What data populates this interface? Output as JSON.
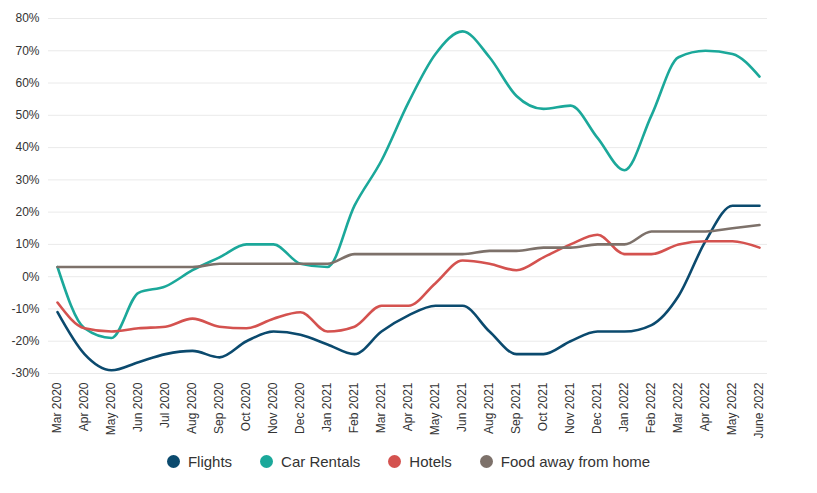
{
  "chart_data": {
    "type": "line",
    "categories": [
      "Mar 2020",
      "Apr 2020",
      "May 2020",
      "Jun 2020",
      "Jul 2020",
      "Aug 2020",
      "Sep 2020",
      "Oct 2020",
      "Nov 2020",
      "Dec 2020",
      "Jan 2021",
      "Feb 2021",
      "Mar 2021",
      "Apr 2021",
      "May 2021",
      "Jun 2021",
      "Aug 2021",
      "Sep 2021",
      "Oct 2021",
      "Nov 2021",
      "Dec 2021",
      "Jan 2022",
      "Feb 2022",
      "Mar 2022",
      "Apr 2022",
      "May 2022",
      "June 2022"
    ],
    "series": [
      {
        "name": "Flights",
        "color": "#0b4a6e",
        "values": [
          -11,
          -24,
          -29,
          -26.5,
          -24,
          -23,
          -25,
          -20,
          -17,
          -18,
          -21,
          -24,
          -17,
          -12,
          -9,
          -9,
          -17,
          -24,
          -24,
          -20,
          -17,
          -17,
          -15,
          -6,
          11,
          22,
          22
        ]
      },
      {
        "name": "Car Rentals",
        "color": "#1ba89a",
        "values": [
          3,
          -16,
          -19,
          -5,
          -3,
          2,
          6,
          10,
          10,
          4,
          3,
          22,
          36,
          54,
          69,
          76,
          68,
          56,
          52,
          53,
          43,
          33,
          50,
          68,
          70,
          69,
          62
        ]
      },
      {
        "name": "Hotels",
        "color": "#d4524f",
        "values": [
          -8,
          -16,
          -17,
          -16,
          -15.5,
          -13,
          -15.5,
          -16,
          -13,
          -11,
          -17,
          -15.5,
          -9,
          -9,
          -2,
          5,
          4,
          2,
          6,
          10,
          13,
          7,
          7,
          10,
          11,
          11,
          9
        ]
      },
      {
        "name": "Food away from home",
        "color": "#7d716a",
        "values": [
          3,
          3,
          3,
          3,
          3,
          3,
          4,
          4,
          4,
          4,
          4,
          7,
          7,
          7,
          7,
          7,
          8,
          8,
          9,
          9,
          10,
          10,
          14,
          14,
          14,
          15,
          16
        ]
      }
    ],
    "ylim": [
      -30,
      80
    ],
    "yticks": [
      {
        "value": -30,
        "label": "-30%"
      },
      {
        "value": -20,
        "label": "-20%"
      },
      {
        "value": -10,
        "label": "-10%"
      },
      {
        "value": 0,
        "label": "0%"
      },
      {
        "value": 10,
        "label": "10%"
      },
      {
        "value": 20,
        "label": "20%"
      },
      {
        "value": 30,
        "label": "30%"
      },
      {
        "value": 40,
        "label": "40%"
      },
      {
        "value": 50,
        "label": "50%"
      },
      {
        "value": 60,
        "label": "60%"
      },
      {
        "value": 70,
        "label": "70%"
      },
      {
        "value": 80,
        "label": "80%"
      }
    ],
    "grid": true,
    "legend": "bottom"
  }
}
